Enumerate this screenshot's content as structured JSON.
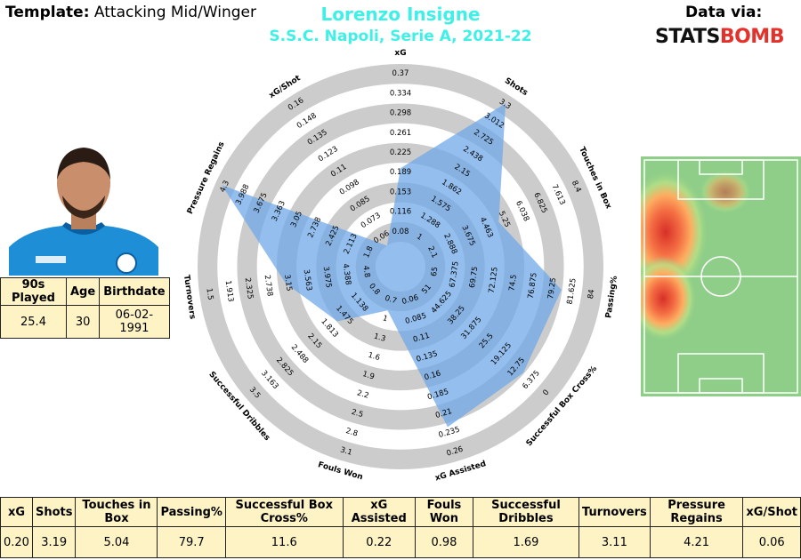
{
  "header": {
    "template_label": "Template:",
    "template_value": "Attacking Mid/Winger",
    "player_name": "Lorenzo Insigne",
    "subtitle": "S.S.C. Napoli, Serie A, 2021-22",
    "data_via": "Data via:",
    "logo_part1": "STATS",
    "logo_part2": "BOMB"
  },
  "player_info": {
    "headers": [
      "90s Played",
      "Age",
      "Birthdate"
    ],
    "values": [
      "25.4",
      "30",
      "06-02-1991"
    ]
  },
  "stats_table": {
    "headers": [
      "xG",
      "Shots",
      "Touches in Box",
      "Passing%",
      "Successful Box Cross%",
      "xG Assisted",
      "Fouls Won",
      "Successful Dribbles",
      "Turnovers",
      "Pressure Regains",
      "xG/Shot"
    ],
    "values": [
      "0.20",
      "3.19",
      "5.04",
      "79.7",
      "11.6",
      "0.22",
      "0.98",
      "1.69",
      "3.11",
      "4.21",
      "0.06"
    ]
  },
  "chart_data": {
    "type": "radar",
    "axes": [
      {
        "name": "xG",
        "ticks": [
          "0.08",
          "0.116",
          "0.153",
          "0.189",
          "0.225",
          "0.261",
          "0.298",
          "0.334",
          "0.37"
        ],
        "min": 0.08,
        "max": 0.37,
        "value": 0.2
      },
      {
        "name": "Shots",
        "ticks": [
          "1",
          "1.288",
          "1.575",
          "1.862",
          "2.15",
          "2.438",
          "2.725",
          "3.012",
          "3.3"
        ],
        "min": 1,
        "max": 3.3,
        "value": 3.19
      },
      {
        "name": "Touches in Box",
        "ticks": [
          "2.1",
          "2.888",
          "3.675",
          "4.463",
          "5.25",
          "6.038",
          "6.825",
          "7.613",
          "8.4"
        ],
        "min": 2.1,
        "max": 8.4,
        "value": 5.04
      },
      {
        "name": "Passing%",
        "ticks": [
          "65",
          "67.375",
          "69.75",
          "72.125",
          "74.5",
          "76.875",
          "79.25",
          "81.625",
          "84"
        ],
        "min": 65,
        "max": 84,
        "value": 79.7
      },
      {
        "name": "Successful Box Cross%",
        "ticks": [
          "51",
          "44.625",
          "38.25",
          "31.875",
          "25.5",
          "19.125",
          "12.75",
          "6.375",
          "0"
        ],
        "min": 51,
        "max": 0,
        "value": 11.6
      },
      {
        "name": "xG Assisted",
        "ticks": [
          "0.06",
          "0.085",
          "0.11",
          "0.135",
          "0.16",
          "0.185",
          "0.21",
          "0.235",
          "0.26"
        ],
        "min": 0.06,
        "max": 0.26,
        "value": 0.22
      },
      {
        "name": "Fouls Won",
        "ticks": [
          "0.7",
          "1",
          "1.3",
          "1.6",
          "1.9",
          "2.2",
          "2.5",
          "2.8",
          "3.1"
        ],
        "min": 0.7,
        "max": 3.1,
        "value": 0.98
      },
      {
        "name": "Successful Dribbles",
        "ticks": [
          "0.8",
          "1.138",
          "1.475",
          "1.813",
          "2.15",
          "2.488",
          "2.825",
          "3.163",
          "3.5"
        ],
        "min": 0.8,
        "max": 3.5,
        "value": 1.69
      },
      {
        "name": "Turnovers",
        "ticks": [
          "4.8",
          "4.388",
          "3.975",
          "3.563",
          "3.15",
          "2.738",
          "2.325",
          "1.913",
          "1.5"
        ],
        "min": 4.8,
        "max": 1.5,
        "value": 3.11
      },
      {
        "name": "Pressure Regains",
        "ticks": [
          "1.8",
          "2.113",
          "2.425",
          "2.738",
          "3.05",
          "3.363",
          "3.675",
          "3.988",
          "4.3"
        ],
        "min": 1.8,
        "max": 4.3,
        "value": 4.21
      },
      {
        "name": "xG/Shot",
        "ticks": [
          "0.06",
          "0.073",
          "0.085",
          "0.098",
          "0.11",
          "0.123",
          "0.135",
          "0.148",
          "0.16"
        ],
        "min": 0.06,
        "max": 0.16,
        "value": 0.06
      }
    ],
    "colors": {
      "ring_gray": "#cccccc",
      "polygon_fill": "#6fa8e8",
      "title_color": "#3ff0e6",
      "table_bg": "#fdf3c5",
      "logo_red": "#e4322b",
      "pitch_green": "#8fce88"
    }
  }
}
